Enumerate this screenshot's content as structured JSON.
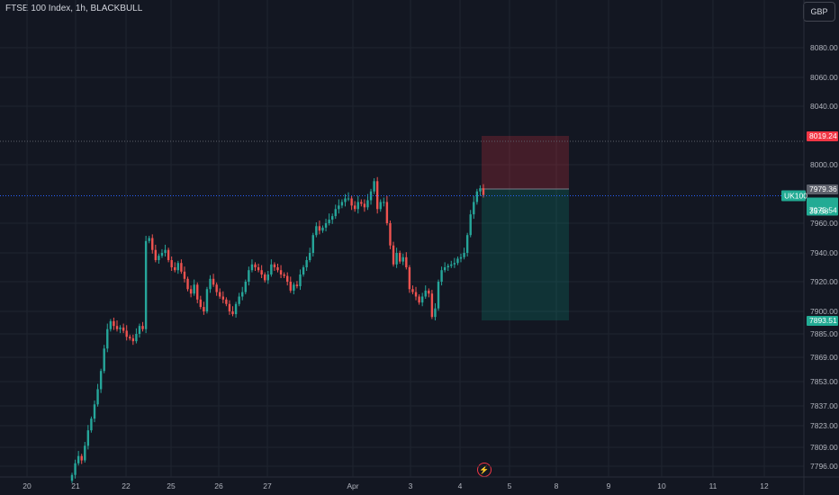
{
  "header": {
    "title": "FTSE 100 Index, 1h, BLACKBULL",
    "currency": "GBP"
  },
  "colors": {
    "up": "#26a69a",
    "down": "#ef5350",
    "background": "#131722",
    "grid": "#1f2430",
    "stop_zone": "#f23645",
    "target_zone": "#089981",
    "price_line": "#2962ff",
    "symbol_tag": "#22ab94"
  },
  "footer": {
    "event_icon": "lightning-icon"
  },
  "chart_data": {
    "type": "candlestick",
    "symbol": "UK100",
    "price_axis_ticks": [
      "8080.00",
      "8060.00",
      "8040.00",
      "8000.00",
      "7960.00",
      "7940.00",
      "7920.00",
      "7900.00",
      "7885.00",
      "7869.00",
      "7853.00",
      "7837.00",
      "7823.00",
      "7809.00",
      "7796.00"
    ],
    "time_axis_ticks": [
      "20",
      "21",
      "22",
      "25",
      "26",
      "27",
      "Apr",
      "3",
      "4",
      "5",
      "8",
      "9",
      "10",
      "11",
      "12"
    ],
    "price_tags": {
      "stop": "8019.24",
      "entry": "7979.36",
      "current": "7975.54",
      "countdown": "35:58",
      "target": "7893.51"
    },
    "position": {
      "entry": 7979.36,
      "stop": 8019.24,
      "target": 7893.51
    },
    "ohlc_closes_approx": [
      7790,
      7798,
      7803,
      7800,
      7810,
      7820,
      7828,
      7838,
      7848,
      7860,
      7875,
      7888,
      7893,
      7890,
      7888,
      7889,
      7887,
      7883,
      7882,
      7880,
      7885,
      7890,
      7888,
      7948,
      7950,
      7942,
      7935,
      7938,
      7940,
      7942,
      7935,
      7930,
      7928,
      7933,
      7927,
      7922,
      7915,
      7912,
      7918,
      7908,
      7903,
      7900,
      7915,
      7922,
      7918,
      7913,
      7910,
      7908,
      7905,
      7900,
      7898,
      7905,
      7910,
      7913,
      7920,
      7928,
      7932,
      7930,
      7928,
      7925,
      7921,
      7925,
      7932,
      7930,
      7928,
      7925,
      7924,
      7920,
      7914,
      7918,
      7917,
      7925,
      7930,
      7935,
      7940,
      7952,
      7958,
      7955,
      7957,
      7960,
      7962,
      7964,
      7968,
      7970,
      7972,
      7974,
      7974,
      7970,
      7968,
      7972,
      7971,
      7969,
      7973,
      7978,
      7986,
      7968,
      7972,
      7972,
      7960,
      7945,
      7932,
      7940,
      7934,
      7937,
      7930,
      7915,
      7913,
      7910,
      7906,
      7910,
      7914,
      7912,
      7896,
      7902,
      7920,
      7928,
      7930,
      7931,
      7932,
      7933,
      7936,
      7937,
      7940,
      7952,
      7965,
      7972,
      7978,
      7980,
      7976
    ]
  }
}
